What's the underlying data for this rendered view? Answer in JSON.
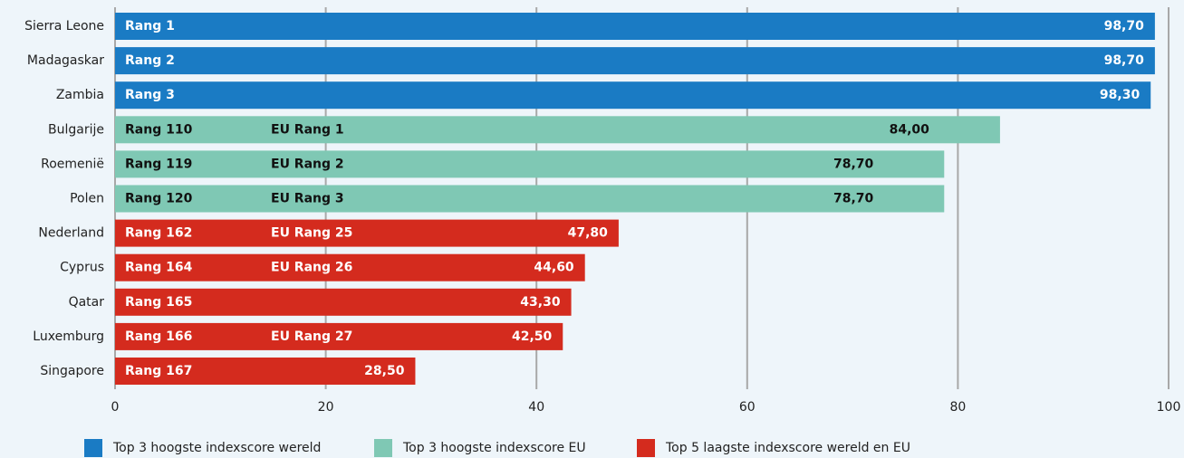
{
  "chart_data": {
    "type": "bar",
    "orientation": "horizontal",
    "categories": [
      "Sierra Leone",
      "Madagaskar",
      "Zambia",
      "Bulgarije",
      "Roemenië",
      "Polen",
      "Nederland",
      "Cyprus",
      "Qatar",
      "Luxemburg",
      "Singapore"
    ],
    "series": [
      {
        "name": "Top 3 hoogste indexscore wereld",
        "color": "#1a7bc4",
        "values": [
          98.7,
          98.7,
          98.3,
          null,
          null,
          null,
          null,
          null,
          null,
          null,
          null
        ],
        "value_labels": [
          "98,70",
          "98,70",
          "98,30",
          null,
          null,
          null,
          null,
          null,
          null,
          null,
          null
        ],
        "rank_labels": [
          "Rang 1",
          "Rang 2",
          "Rang 3",
          null,
          null,
          null,
          null,
          null,
          null,
          null,
          null
        ],
        "eu_rank_labels": [
          null,
          null,
          null,
          null,
          null,
          null,
          null,
          null,
          null,
          null,
          null
        ]
      },
      {
        "name": "Top 3 hoogste indexscore EU",
        "color": "#7fc8b4",
        "values": [
          null,
          null,
          null,
          84,
          78.7,
          78.7,
          null,
          null,
          null,
          null,
          null
        ],
        "value_labels": [
          null,
          null,
          null,
          "84,00",
          "78,70",
          "78,70",
          null,
          null,
          null,
          null,
          null
        ],
        "rank_labels": [
          null,
          null,
          null,
          "Rang 110",
          "Rang 119",
          "Rang 120",
          null,
          null,
          null,
          null,
          null
        ],
        "eu_rank_labels": [
          null,
          null,
          null,
          "EU Rang 1",
          "EU Rang 2",
          "EU Rang 3",
          null,
          null,
          null,
          null,
          null
        ]
      },
      {
        "name": "Top 5 laagste indexscore wereld en EU",
        "color": "#d42b1e",
        "values": [
          null,
          null,
          null,
          null,
          null,
          null,
          47.8,
          44.6,
          43.3,
          42.5,
          28.5
        ],
        "value_labels": [
          null,
          null,
          null,
          null,
          null,
          null,
          "47,80",
          "44,60",
          "43,30",
          "42,50",
          "28,50"
        ],
        "rank_labels": [
          null,
          null,
          null,
          null,
          null,
          null,
          "Rang 162",
          "Rang 164",
          "Rang 165",
          "Rang 166",
          "Rang 167"
        ],
        "eu_rank_labels": [
          null,
          null,
          null,
          null,
          null,
          null,
          "EU Rang 25",
          "EU Rang 26",
          null,
          "EU Rang 27",
          null
        ]
      }
    ],
    "xlim": [
      0,
      100
    ],
    "xticks": [
      0,
      20,
      40,
      60,
      80,
      100
    ],
    "grid": true
  }
}
